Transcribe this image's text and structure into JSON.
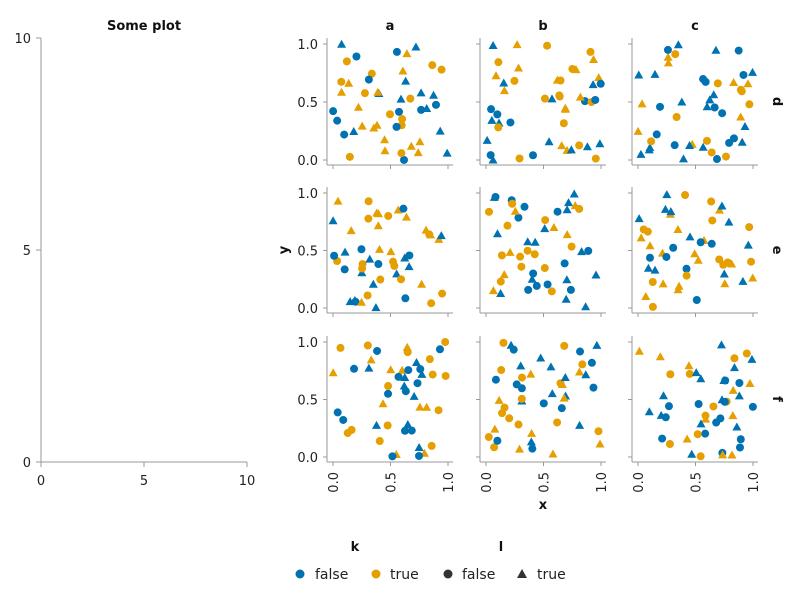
{
  "colors": {
    "false": "#0072b2",
    "true": "#e69f00",
    "marker_legend": "#333333",
    "axis": "#999999"
  },
  "chart_data": [
    {
      "type": "empty",
      "title": "Some plot",
      "xlim": [
        0,
        10
      ],
      "ylim": [
        0,
        10
      ],
      "x_ticks": [
        "0",
        "5",
        "10"
      ],
      "y_ticks": [
        "0",
        "5",
        "10"
      ]
    },
    {
      "type": "scatter",
      "facet_columns": [
        "a",
        "b",
        "c"
      ],
      "facet_rows": [
        "d",
        "e",
        "f"
      ],
      "xlabel": "x",
      "ylabel": "y",
      "xlim": [
        0,
        1
      ],
      "ylim": [
        0,
        1
      ],
      "x_ticks": [
        "0.0",
        "0.5",
        "1.0"
      ],
      "y_ticks": [
        "0.0",
        "0.5",
        "1.0"
      ],
      "color_key": "k",
      "shape_key": "l",
      "points_per_panel": 48,
      "seed": 7
    }
  ],
  "legend": {
    "k": {
      "title": "k",
      "entries": [
        {
          "label": "false",
          "color": "#0072b2"
        },
        {
          "label": "true",
          "color": "#e69f00"
        }
      ]
    },
    "l": {
      "title": "l",
      "entries": [
        {
          "label": "false",
          "shape": "circle"
        },
        {
          "label": "true",
          "shape": "triangle"
        }
      ]
    }
  }
}
